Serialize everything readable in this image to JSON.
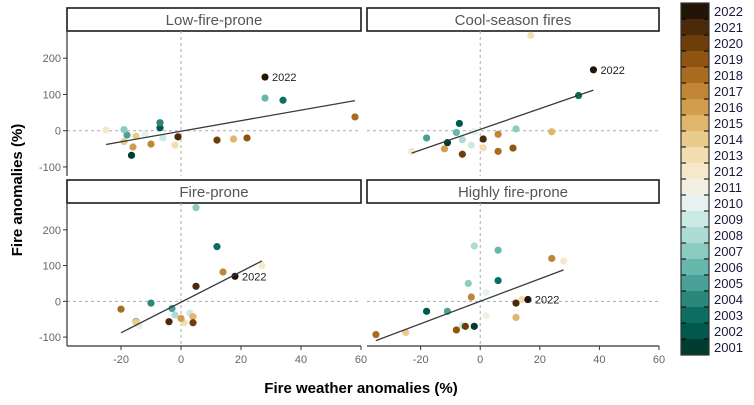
{
  "chart_data": {
    "type": "scatter",
    "title": "",
    "xlabel": "Fire weather anomalies (%)",
    "ylabel": "Fire anomalies (%)",
    "xlim": [
      -38,
      60
    ],
    "ylim": [
      -125,
      275
    ],
    "x_ticks": [
      -20,
      0,
      20,
      40,
      60
    ],
    "x_tick_labels": [
      "-20",
      "0",
      "20",
      "40",
      "60"
    ],
    "y_ticks": [
      200,
      100,
      0,
      -100
    ],
    "y_tick_labels": [
      "200",
      "100",
      "0",
      "-100"
    ],
    "grid": false,
    "reference_lines": {
      "x": 0,
      "y": 0,
      "style": "dashed"
    },
    "legend": {
      "placement": "right",
      "type": "colorbar",
      "years": [
        2022,
        2021,
        2020,
        2019,
        2018,
        2017,
        2016,
        2015,
        2014,
        2013,
        2012,
        2011,
        2010,
        2009,
        2008,
        2007,
        2006,
        2005,
        2004,
        2003,
        2002,
        2001
      ],
      "colors": {
        "2001": "#003c30",
        "2002": "#01584d",
        "2003": "#0b6e60",
        "2004": "#2a877a",
        "2005": "#48a096",
        "2006": "#66b8ad",
        "2007": "#8ccbc0",
        "2008": "#acdcd3",
        "2009": "#cbeae4",
        "2010": "#e6f2ef",
        "2011": "#f3efe3",
        "2012": "#f6e9cb",
        "2013": "#f2deb0",
        "2014": "#e9cc8c",
        "2015": "#dfb66c",
        "2016": "#d29d4e",
        "2017": "#c08536",
        "2018": "#a96b20",
        "2019": "#8f5412",
        "2020": "#6e3d0c",
        "2021": "#4b2a0b",
        "2022": "#221508"
      }
    },
    "panels": [
      {
        "title": "Low-fire-prone",
        "trend": {
          "x": [
            -25,
            58
          ],
          "y": [
            -38,
            83
          ]
        },
        "annotation": {
          "year": 2022,
          "label": "2022"
        },
        "points": [
          {
            "year": 2001,
            "x": -16.5,
            "y": -68
          },
          {
            "year": 2002,
            "x": -7,
            "y": 8
          },
          {
            "year": 2003,
            "x": 34,
            "y": 84
          },
          {
            "year": 2004,
            "x": -7,
            "y": 22
          },
          {
            "year": 2005,
            "x": -18,
            "y": -12
          },
          {
            "year": 2006,
            "x": 28,
            "y": 90
          },
          {
            "year": 2007,
            "x": -19,
            "y": 3
          },
          {
            "year": 2009,
            "x": -6,
            "y": -20
          },
          {
            "year": 2010,
            "x": -12,
            "y": -10
          },
          {
            "year": 2012,
            "x": -25,
            "y": 2
          },
          {
            "year": 2013,
            "x": -2,
            "y": -40
          },
          {
            "year": 2014,
            "x": -19,
            "y": -30
          },
          {
            "year": 2015,
            "x": 17.5,
            "y": -23
          },
          {
            "year": 2016,
            "x": -16,
            "y": -45
          },
          {
            "year": 2014,
            "x": -15,
            "y": -15
          },
          {
            "year": 2017,
            "x": -10,
            "y": -37
          },
          {
            "year": 2018,
            "x": 58,
            "y": 38
          },
          {
            "year": 2019,
            "x": 22,
            "y": -20
          },
          {
            "year": 2020,
            "x": 12,
            "y": -26
          },
          {
            "year": 2021,
            "x": -1,
            "y": -17
          },
          {
            "year": 2022,
            "x": 28,
            "y": 148
          }
        ]
      },
      {
        "title": "Cool-season fires",
        "trend": {
          "x": [
            -23,
            38
          ],
          "y": [
            -62,
            112
          ]
        },
        "annotation": {
          "year": 2022,
          "label": "2022"
        },
        "points": [
          {
            "year": 2001,
            "x": -11,
            "y": -33
          },
          {
            "year": 2002,
            "x": -7,
            "y": 20
          },
          {
            "year": 2003,
            "x": 33,
            "y": 97
          },
          {
            "year": 2005,
            "x": -18,
            "y": -20
          },
          {
            "year": 2006,
            "x": -8,
            "y": -5
          },
          {
            "year": 2007,
            "x": 12,
            "y": 5
          },
          {
            "year": 2008,
            "x": -6,
            "y": -25
          },
          {
            "year": 2009,
            "x": -3,
            "y": -40
          },
          {
            "year": 2010,
            "x": -2,
            "y": -2
          },
          {
            "year": 2012,
            "x": -23,
            "y": -57
          },
          {
            "year": 2013,
            "x": 1,
            "y": -47
          },
          {
            "year": 2013,
            "x": 17,
            "y": 263
          },
          {
            "year": 2015,
            "x": 24,
            "y": -3
          },
          {
            "year": 2016,
            "x": -12,
            "y": -50
          },
          {
            "year": 2017,
            "x": 6,
            "y": -10
          },
          {
            "year": 2018,
            "x": 6,
            "y": -57
          },
          {
            "year": 2019,
            "x": 11,
            "y": -48
          },
          {
            "year": 2020,
            "x": -6,
            "y": -65
          },
          {
            "year": 2021,
            "x": 1,
            "y": -23
          },
          {
            "year": 2022,
            "x": 38,
            "y": 168
          }
        ]
      },
      {
        "title": "Fire-prone",
        "trend": {
          "x": [
            -20,
            27
          ],
          "y": [
            -88,
            113
          ]
        },
        "annotation": {
          "year": 2022,
          "label": "2022"
        },
        "points": [
          {
            "year": 2002,
            "x": -15,
            "y": -57
          },
          {
            "year": 2003,
            "x": 12,
            "y": 153
          },
          {
            "year": 2004,
            "x": -10,
            "y": -5
          },
          {
            "year": 2005,
            "x": -3,
            "y": -20
          },
          {
            "year": 2007,
            "x": 5,
            "y": 262
          },
          {
            "year": 2008,
            "x": -2,
            "y": -38
          },
          {
            "year": 2009,
            "x": 3,
            "y": -33
          },
          {
            "year": 2010,
            "x": -14,
            "y": -68
          },
          {
            "year": 2012,
            "x": 27,
            "y": 100
          },
          {
            "year": 2013,
            "x": 1,
            "y": -60
          },
          {
            "year": 2014,
            "x": -15,
            "y": -58
          },
          {
            "year": 2015,
            "x": 4,
            "y": -43
          },
          {
            "year": 2016,
            "x": 0,
            "y": -48
          },
          {
            "year": 2017,
            "x": 14,
            "y": 82
          },
          {
            "year": 2018,
            "x": -20,
            "y": -22
          },
          {
            "year": 2020,
            "x": 4,
            "y": -60
          },
          {
            "year": 2021,
            "x": -4,
            "y": -57
          },
          {
            "year": 2021,
            "x": 5,
            "y": 42
          },
          {
            "year": 2022,
            "x": 18,
            "y": 70
          }
        ]
      },
      {
        "title": "Highly fire-prone",
        "trend": {
          "x": [
            -35,
            28
          ],
          "y": [
            -110,
            88
          ]
        },
        "annotation": {
          "year": 2022,
          "label": "2022"
        },
        "points": [
          {
            "year": 2001,
            "x": -2,
            "y": -70
          },
          {
            "year": 2002,
            "x": -18,
            "y": -28
          },
          {
            "year": 2003,
            "x": 6,
            "y": 58
          },
          {
            "year": 2005,
            "x": -11,
            "y": -28
          },
          {
            "year": 2006,
            "x": 6,
            "y": 143
          },
          {
            "year": 2007,
            "x": -4,
            "y": 50
          },
          {
            "year": 2008,
            "x": -2,
            "y": 155
          },
          {
            "year": 2009,
            "x": -6,
            "y": -68
          },
          {
            "year": 2010,
            "x": 2,
            "y": 25
          },
          {
            "year": 2011,
            "x": 2,
            "y": -40
          },
          {
            "year": 2012,
            "x": 28,
            "y": 113
          },
          {
            "year": 2014,
            "x": -25,
            "y": -87
          },
          {
            "year": 2015,
            "x": 12,
            "y": -45
          },
          {
            "year": 2013,
            "x": 14,
            "y": 5
          },
          {
            "year": 2017,
            "x": -3,
            "y": 12
          },
          {
            "year": 2017,
            "x": 24,
            "y": 120
          },
          {
            "year": 2018,
            "x": -35,
            "y": -93
          },
          {
            "year": 2019,
            "x": -8,
            "y": -80
          },
          {
            "year": 2020,
            "x": -5,
            "y": -70
          },
          {
            "year": 2021,
            "x": 12,
            "y": -5
          },
          {
            "year": 2022,
            "x": 16,
            "y": 5
          }
        ]
      }
    ]
  }
}
